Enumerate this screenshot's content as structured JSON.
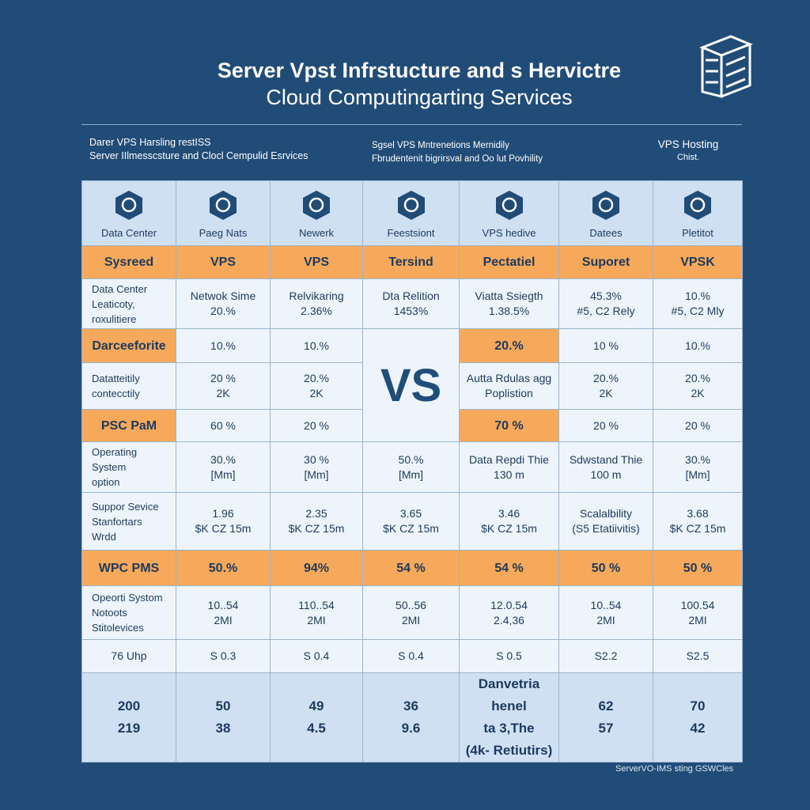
{
  "header": {
    "title": [
      "Server Vpst Infrstucture and s Hervictre",
      "Cloud Computingarting Services"
    ]
  },
  "subheader": {
    "left": [
      "Darer VPS Harsling restISS",
      "Server IIlmesscsture and Clocl Cempulid Esrvices"
    ],
    "middle": [
      "Sgsel VPS Mntrenetions Mernidily",
      "Fbrudentenit bigrirsval and Oo lut Povhility"
    ],
    "right": [
      "VPS Hosting",
      "Chist."
    ]
  },
  "table": {
    "columns": [
      "Data Center",
      "Paeg Nats",
      "Newerk",
      "Feestsiont",
      "VPS hedive",
      "Datees",
      "Pletitot"
    ],
    "vs": "VS",
    "rows": [
      [
        "Sysreed",
        "VPS",
        "VPS",
        "Tersind",
        "Pectatiel",
        "Suporet",
        "VPSK"
      ],
      [
        "Data Center\nLeaticoty,\nroxulitiere",
        "Netwok Sime\n20.%",
        "Relvikaring\n2.36%",
        "Dta Relition\n1453%",
        "Viatta Ssiegth\n1.38.5%",
        "45.3%\n#5, C2 Rely",
        "10.%\n#5, C2 Mly"
      ],
      [
        "Darceeforite",
        "10.%",
        "10.%",
        "20.%",
        "10 %",
        "10.%"
      ],
      [
        "Datatteitily\ncontecctily",
        "20 %\n2K",
        "20.%\n2K",
        "Autta Rdulas agg\nPoplistion",
        "20.%\n2K",
        "20.%\n2K"
      ],
      [
        "PSC PaM",
        "60 %",
        "20 %",
        "70 %",
        "20 %",
        "20 %"
      ],
      [
        "Operating System\noption",
        "30.%\n[Mm]",
        "30 %\n[Mm]",
        "50.%\n[Mm]",
        "Data Repdi Thie\n130 m",
        "Sdwstand Thie\n100 m",
        "30.%\n[Mm]"
      ],
      [
        "Suppor Sevice\nStanfortars\nWrdd",
        "1.96\n$K CZ 15m",
        "2.35\n$K CZ 15m",
        "3.65\n$K CZ 15m",
        "3.46\n$K CZ 15m",
        "Scalalbility\n(S5 Etatiivitis)",
        "3.68\n$K CZ 15m"
      ],
      [
        "WPC PMS",
        "50.%",
        "94%",
        "54 %",
        "54 %",
        "50 %",
        "50 %"
      ],
      [
        "Opeorti Systom\nNotoots\nStitolevices",
        "10..54\n2MI",
        "110..54\n2MI",
        "50..56\n2MI",
        "12.0.54\n2.4,36",
        "10..54\n2MI",
        "100.54\n2MI"
      ],
      [
        "76 Uhp",
        "S 0.3",
        "S 0.4",
        "S 0.4",
        "S 0.5",
        "S2.2",
        "S2.5"
      ],
      [
        "200\n219",
        "50\n38",
        "49\n4.5",
        "36\n9.6",
        "Danvetria henel\nta 3,The\n(4k- Retiutirs)",
        "62\n57",
        "70\n42"
      ]
    ]
  },
  "footer": "ServerVO-IMS sting GSWCles"
}
